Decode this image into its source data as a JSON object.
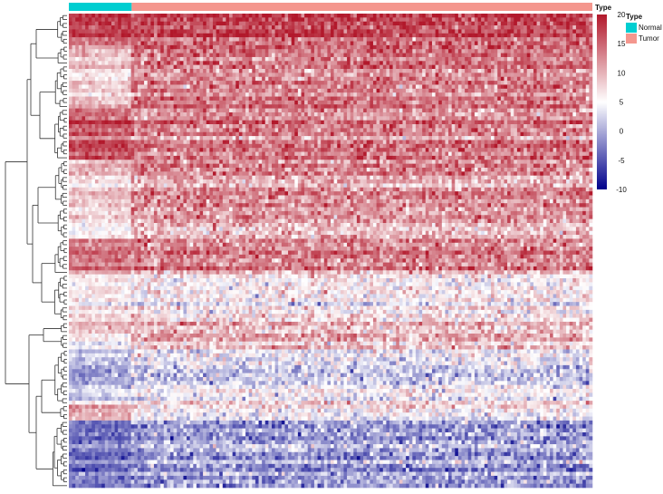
{
  "chart_data": {
    "type": "heatmap",
    "title": "",
    "annotation": {
      "title": "Type",
      "categories": [
        {
          "name": "Normal",
          "color": "#00CED1",
          "sample_share": 0.12
        },
        {
          "name": "Tumor",
          "color": "#F4978E",
          "sample_share": 0.88
        }
      ]
    },
    "color_scale": {
      "title": "Type",
      "min": -10,
      "max": 20,
      "midpoint": 5,
      "ticks": [
        "20",
        "15",
        "10",
        "5",
        "0",
        "-5",
        "-10"
      ],
      "low_color": "#00008B",
      "mid_color": "#FFFFFF",
      "high_color": "#B2182B"
    },
    "row_dendrogram": true,
    "col_dendrogram": false,
    "gene_blocks": [
      {
        "rows": 8,
        "normal_mean": 17.5,
        "tumor_mean": 17.0
      },
      {
        "rows": 5,
        "normal_mean": 10.0,
        "tumor_mean": 15.0
      },
      {
        "rows": 11,
        "normal_mean": 8.5,
        "tumor_mean": 13.5
      },
      {
        "rows": 13,
        "normal_mean": 16.0,
        "tumor_mean": 13.5
      },
      {
        "rows": 12,
        "normal_mean": 9.0,
        "tumor_mean": 12.5
      },
      {
        "rows": 8,
        "normal_mean": 7.5,
        "tumor_mean": 11.5
      },
      {
        "rows": 9,
        "normal_mean": 14.0,
        "tumor_mean": 13.0
      },
      {
        "rows": 12,
        "normal_mean": 7.0,
        "tumor_mean": 6.5
      },
      {
        "rows": 3,
        "normal_mean": 10.0,
        "tumor_mean": 9.5
      },
      {
        "rows": 4,
        "normal_mean": 4.5,
        "tumor_mean": 9.0
      },
      {
        "rows": 14,
        "normal_mean": 1.0,
        "tumor_mean": 3.5
      },
      {
        "rows": 4,
        "normal_mean": 9.0,
        "tumor_mean": 3.5
      },
      {
        "rows": 17,
        "normal_mean": -3.5,
        "tumor_mean": -1.0
      }
    ]
  }
}
